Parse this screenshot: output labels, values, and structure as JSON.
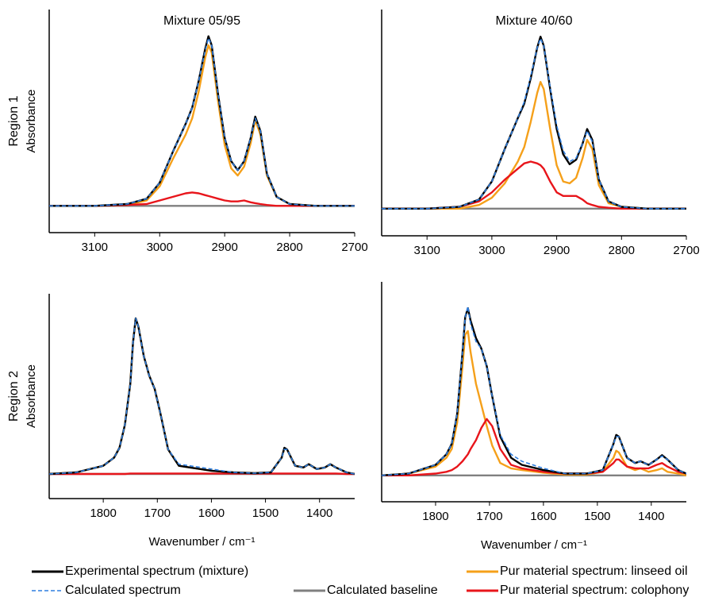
{
  "chart_data": [
    {
      "type": "line",
      "title": "Mixture 05/95",
      "row_label": "Region 1",
      "ylabel": "Absorbance",
      "x": [
        3170,
        3100,
        3050,
        3020,
        3000,
        2980,
        2960,
        2950,
        2940,
        2930,
        2925,
        2920,
        2910,
        2900,
        2890,
        2880,
        2870,
        2860,
        2853,
        2845,
        2835,
        2820,
        2800,
        2760,
        2700
      ],
      "xlim": [
        3170,
        2700
      ],
      "xticks": [
        3100,
        3000,
        2900,
        2800,
        2700
      ],
      "ylim": [
        -0.15,
        1.1
      ],
      "series": [
        {
          "name": "Experimental spectrum (mixture)",
          "color": "#000000",
          "values": [
            0,
            0,
            0.01,
            0.04,
            0.13,
            0.3,
            0.46,
            0.55,
            0.7,
            0.88,
            0.95,
            0.9,
            0.62,
            0.38,
            0.25,
            0.2,
            0.25,
            0.38,
            0.5,
            0.42,
            0.18,
            0.05,
            0.01,
            0,
            0
          ]
        },
        {
          "name": "Calculated spectrum",
          "color": "#2f7fe0",
          "dash": true,
          "values": [
            0,
            0,
            0.01,
            0.04,
            0.13,
            0.3,
            0.46,
            0.55,
            0.7,
            0.87,
            0.94,
            0.9,
            0.62,
            0.38,
            0.25,
            0.2,
            0.25,
            0.38,
            0.49,
            0.42,
            0.18,
            0.05,
            0.01,
            0,
            0
          ]
        },
        {
          "name": "Calculated baseline",
          "color": "#808080",
          "values": [
            0,
            0,
            0,
            0,
            0,
            0,
            0,
            0,
            0,
            0,
            0,
            0,
            0,
            0,
            0,
            0,
            0,
            0,
            0,
            0,
            0,
            0,
            0,
            0,
            0
          ]
        },
        {
          "name": "Pur material spectrum: linseed oil",
          "color": "#f5a01a",
          "values": [
            0,
            0,
            0.005,
            0.03,
            0.11,
            0.26,
            0.4,
            0.49,
            0.64,
            0.83,
            0.9,
            0.86,
            0.58,
            0.34,
            0.21,
            0.17,
            0.22,
            0.35,
            0.48,
            0.4,
            0.17,
            0.05,
            0.01,
            0,
            0
          ]
        },
        {
          "name": "Pur material spectrum: colophony",
          "color": "#e8151b",
          "values": [
            0,
            0,
            0.005,
            0.01,
            0.03,
            0.05,
            0.07,
            0.075,
            0.07,
            0.06,
            0.055,
            0.05,
            0.04,
            0.03,
            0.025,
            0.025,
            0.03,
            0.02,
            0.015,
            0.01,
            0.005,
            0,
            0,
            0,
            0
          ]
        }
      ]
    },
    {
      "type": "line",
      "title": "Mixture 40/60",
      "x": [
        3170,
        3100,
        3050,
        3020,
        3000,
        2980,
        2960,
        2950,
        2940,
        2930,
        2925,
        2920,
        2910,
        2900,
        2890,
        2880,
        2870,
        2860,
        2853,
        2845,
        2835,
        2820,
        2800,
        2760,
        2700
      ],
      "xlim": [
        3170,
        2700
      ],
      "xticks": [
        3100,
        3000,
        2900,
        2800,
        2700
      ],
      "ylim": [
        -0.15,
        1.1
      ],
      "series": [
        {
          "color": "#000000",
          "values": [
            0,
            0,
            0.01,
            0.05,
            0.15,
            0.33,
            0.5,
            0.58,
            0.72,
            0.89,
            0.95,
            0.9,
            0.66,
            0.44,
            0.3,
            0.245,
            0.27,
            0.36,
            0.44,
            0.38,
            0.16,
            0.04,
            0.01,
            0,
            0
          ]
        },
        {
          "color": "#2f7fe0",
          "dash": true,
          "values": [
            0,
            0,
            0.01,
            0.05,
            0.15,
            0.33,
            0.5,
            0.59,
            0.73,
            0.89,
            0.94,
            0.9,
            0.67,
            0.46,
            0.32,
            0.26,
            0.28,
            0.36,
            0.43,
            0.37,
            0.16,
            0.04,
            0.01,
            0,
            0
          ]
        },
        {
          "color": "#808080",
          "values": [
            0,
            0,
            0,
            0,
            0,
            0,
            0,
            0,
            0,
            0,
            0,
            0,
            0,
            0,
            0,
            0,
            0,
            0,
            0,
            0,
            0,
            0,
            0,
            0,
            0
          ]
        },
        {
          "color": "#f5a01a",
          "values": [
            0,
            0,
            0,
            0.02,
            0.06,
            0.14,
            0.26,
            0.34,
            0.48,
            0.64,
            0.7,
            0.66,
            0.44,
            0.24,
            0.15,
            0.14,
            0.17,
            0.28,
            0.38,
            0.33,
            0.13,
            0.03,
            0.01,
            0,
            0
          ]
        },
        {
          "color": "#e8151b",
          "values": [
            0,
            0,
            0.01,
            0.04,
            0.09,
            0.16,
            0.22,
            0.25,
            0.26,
            0.25,
            0.24,
            0.22,
            0.15,
            0.09,
            0.07,
            0.07,
            0.07,
            0.05,
            0.03,
            0.02,
            0.01,
            0.005,
            0,
            0,
            0
          ]
        }
      ]
    },
    {
      "type": "line",
      "row_label": "Region 2",
      "ylabel": "Absorbance",
      "xlabel": "Wavenumber / cm⁻¹",
      "x": [
        1900,
        1850,
        1800,
        1780,
        1770,
        1760,
        1750,
        1745,
        1740,
        1735,
        1725,
        1715,
        1705,
        1695,
        1680,
        1660,
        1640,
        1600,
        1560,
        1520,
        1490,
        1470,
        1465,
        1460,
        1445,
        1430,
        1420,
        1405,
        1390,
        1380,
        1370,
        1350,
        1335
      ],
      "xlim": [
        1900,
        1335
      ],
      "xticks": [
        1800,
        1700,
        1600,
        1500,
        1400
      ],
      "ylim": [
        -0.15,
        1.1
      ],
      "series": [
        {
          "color": "#000000",
          "values": [
            0,
            0.01,
            0.05,
            0.1,
            0.16,
            0.3,
            0.55,
            0.8,
            0.95,
            0.9,
            0.72,
            0.6,
            0.52,
            0.38,
            0.15,
            0.05,
            0.04,
            0.02,
            0.01,
            0.005,
            0.01,
            0.1,
            0.16,
            0.15,
            0.05,
            0.04,
            0.06,
            0.03,
            0.04,
            0.06,
            0.04,
            0.01,
            0
          ]
        },
        {
          "color": "#2f7fe0",
          "dash": true,
          "values": [
            0,
            0.01,
            0.05,
            0.1,
            0.16,
            0.3,
            0.55,
            0.8,
            0.95,
            0.9,
            0.72,
            0.6,
            0.52,
            0.38,
            0.15,
            0.06,
            0.05,
            0.03,
            0.01,
            0.005,
            0.01,
            0.1,
            0.15,
            0.15,
            0.05,
            0.04,
            0.06,
            0.03,
            0.04,
            0.06,
            0.04,
            0.01,
            0
          ]
        },
        {
          "color": "#808080",
          "values": [
            0,
            0,
            0,
            0,
            0,
            0,
            0,
            0,
            0,
            0,
            0,
            0,
            0,
            0,
            0,
            0,
            0,
            0,
            0,
            0,
            0,
            0,
            0,
            0,
            0,
            0,
            0,
            0,
            0,
            0,
            0,
            0,
            0
          ]
        },
        {
          "color": "#f5a01a",
          "values": [
            0,
            0.01,
            0.05,
            0.1,
            0.16,
            0.3,
            0.55,
            0.8,
            0.945,
            0.9,
            0.72,
            0.6,
            0.52,
            0.38,
            0.15,
            0.05,
            0.04,
            0.02,
            0.01,
            0.005,
            0.01,
            0.1,
            0.155,
            0.15,
            0.05,
            0.04,
            0.06,
            0.03,
            0.04,
            0.06,
            0.04,
            0.01,
            0
          ]
        },
        {
          "color": "#e8151b",
          "values": [
            0,
            0,
            0,
            0,
            0,
            0,
            0.003,
            0.003,
            0.003,
            0.003,
            0.003,
            0.003,
            0.003,
            0.003,
            0.003,
            0.003,
            0.003,
            0.003,
            0.003,
            0.003,
            0.003,
            0.003,
            0.003,
            0.003,
            0.003,
            0.003,
            0.003,
            0.003,
            0.003,
            0.003,
            0.003,
            0,
            0
          ]
        }
      ]
    },
    {
      "type": "line",
      "xlabel": "Wavenumber / cm⁻¹",
      "x": [
        1900,
        1850,
        1800,
        1780,
        1770,
        1760,
        1750,
        1745,
        1740,
        1735,
        1725,
        1715,
        1705,
        1695,
        1680,
        1660,
        1640,
        1600,
        1560,
        1520,
        1490,
        1470,
        1465,
        1460,
        1445,
        1430,
        1420,
        1405,
        1390,
        1380,
        1370,
        1350,
        1335
      ],
      "xlim": [
        1900,
        1335
      ],
      "xticks": [
        1800,
        1700,
        1600,
        1500,
        1400
      ],
      "ylim": [
        -0.15,
        1.1
      ],
      "series": [
        {
          "color": "#000000",
          "values": [
            0,
            0.01,
            0.06,
            0.12,
            0.18,
            0.35,
            0.7,
            0.9,
            0.95,
            0.88,
            0.78,
            0.72,
            0.62,
            0.45,
            0.22,
            0.1,
            0.06,
            0.03,
            0.01,
            0.01,
            0.03,
            0.18,
            0.23,
            0.22,
            0.1,
            0.07,
            0.08,
            0.06,
            0.09,
            0.115,
            0.09,
            0.03,
            0.01
          ]
        },
        {
          "color": "#2f7fe0",
          "dash": true,
          "values": [
            0,
            0.01,
            0.06,
            0.12,
            0.18,
            0.35,
            0.7,
            0.9,
            0.96,
            0.86,
            0.76,
            0.72,
            0.62,
            0.45,
            0.23,
            0.12,
            0.08,
            0.04,
            0.01,
            0.01,
            0.03,
            0.18,
            0.22,
            0.22,
            0.1,
            0.07,
            0.08,
            0.06,
            0.09,
            0.11,
            0.09,
            0.03,
            0.01
          ]
        },
        {
          "color": "#808080",
          "values": [
            0,
            0,
            0,
            0,
            0,
            0,
            0,
            0,
            0,
            0,
            0,
            0,
            0,
            0,
            0,
            0,
            0,
            0,
            0,
            0,
            0,
            0,
            0,
            0,
            0,
            0,
            0,
            0,
            0,
            0,
            0,
            0,
            0
          ]
        },
        {
          "color": "#f5a01a",
          "values": [
            0,
            0.01,
            0.05,
            0.1,
            0.15,
            0.3,
            0.62,
            0.8,
            0.82,
            0.7,
            0.52,
            0.4,
            0.28,
            0.17,
            0.07,
            0.04,
            0.03,
            0.015,
            0.005,
            0.005,
            0.02,
            0.1,
            0.14,
            0.13,
            0.05,
            0.03,
            0.04,
            0.02,
            0.03,
            0.04,
            0.02,
            0.01,
            0
          ]
        },
        {
          "color": "#e8151b",
          "values": [
            0,
            0,
            0.01,
            0.02,
            0.03,
            0.05,
            0.08,
            0.1,
            0.12,
            0.15,
            0.2,
            0.27,
            0.32,
            0.28,
            0.15,
            0.06,
            0.04,
            0.02,
            0.01,
            0.01,
            0.02,
            0.07,
            0.09,
            0.09,
            0.05,
            0.04,
            0.04,
            0.04,
            0.06,
            0.07,
            0.05,
            0.02,
            0.01
          ]
        }
      ]
    }
  ]
}
